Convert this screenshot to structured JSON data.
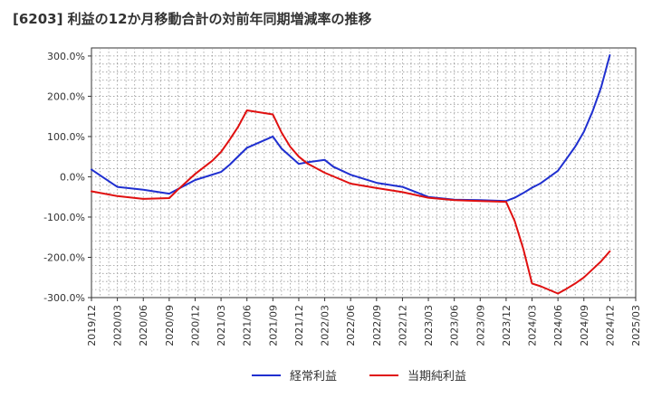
{
  "chart_data": {
    "type": "line",
    "title": "[6203]  利益の12か月移動合計の対前年同期増減率の推移",
    "xlabel": "",
    "ylabel": "",
    "ylim": [
      -300,
      320
    ],
    "y_ticks": [
      "300.0%",
      "200.0%",
      "100.0%",
      "0.0%",
      "-100.0%",
      "-200.0%",
      "-300.0%"
    ],
    "y_tick_values": [
      300,
      200,
      100,
      0,
      -100,
      -200,
      -300
    ],
    "x_ticks": [
      "2019/12",
      "2020/03",
      "2020/06",
      "2020/09",
      "2020/12",
      "2021/03",
      "2021/06",
      "2021/09",
      "2021/12",
      "2022/03",
      "2022/06",
      "2022/09",
      "2022/12",
      "2023/03",
      "2023/06",
      "2023/09",
      "2023/12",
      "2024/03",
      "2024/06",
      "2024/09",
      "2024/12",
      "2025/03"
    ],
    "x_tick_index": [
      0,
      3,
      6,
      9,
      12,
      15,
      18,
      21,
      24,
      27,
      30,
      33,
      36,
      39,
      42,
      45,
      48,
      51,
      54,
      57,
      60,
      63
    ],
    "grid": true,
    "legend_position": "bottom",
    "series": [
      {
        "name": "経常利益",
        "color": "#1f2fd0",
        "points": [
          [
            0,
            18
          ],
          [
            3,
            -25
          ],
          [
            6,
            -32
          ],
          [
            9,
            -42
          ],
          [
            12,
            -8
          ],
          [
            15,
            12
          ],
          [
            16,
            30
          ],
          [
            18,
            72
          ],
          [
            21,
            100
          ],
          [
            22,
            70
          ],
          [
            24,
            32
          ],
          [
            25,
            36
          ],
          [
            27,
            42
          ],
          [
            28,
            25
          ],
          [
            30,
            5
          ],
          [
            33,
            -15
          ],
          [
            36,
            -25
          ],
          [
            39,
            -50
          ],
          [
            42,
            -57
          ],
          [
            45,
            -58
          ],
          [
            48,
            -60
          ],
          [
            49,
            -52
          ],
          [
            50,
            -40
          ],
          [
            51,
            -27
          ],
          [
            52,
            -16
          ],
          [
            54,
            15
          ],
          [
            55,
            45
          ],
          [
            56,
            75
          ],
          [
            57,
            112
          ],
          [
            58,
            162
          ],
          [
            59,
            222
          ],
          [
            60,
            302
          ]
        ]
      },
      {
        "name": "当期純利益",
        "color": "#e01010",
        "points": [
          [
            0,
            -36
          ],
          [
            3,
            -48
          ],
          [
            6,
            -55
          ],
          [
            9,
            -53
          ],
          [
            10,
            -32
          ],
          [
            12,
            7
          ],
          [
            14,
            40
          ],
          [
            15,
            62
          ],
          [
            16,
            92
          ],
          [
            17,
            125
          ],
          [
            18,
            165
          ],
          [
            21,
            155
          ],
          [
            22,
            110
          ],
          [
            23,
            75
          ],
          [
            24,
            50
          ],
          [
            25,
            33
          ],
          [
            27,
            10
          ],
          [
            30,
            -17
          ],
          [
            33,
            -28
          ],
          [
            36,
            -38
          ],
          [
            39,
            -52
          ],
          [
            42,
            -58
          ],
          [
            45,
            -60
          ],
          [
            48,
            -62
          ],
          [
            49,
            -110
          ],
          [
            50,
            -180
          ],
          [
            51,
            -265
          ],
          [
            52,
            -272
          ],
          [
            54,
            -290
          ],
          [
            55,
            -278
          ],
          [
            56,
            -265
          ],
          [
            57,
            -250
          ],
          [
            58,
            -230
          ],
          [
            59,
            -210
          ],
          [
            60,
            -185
          ]
        ]
      }
    ]
  }
}
